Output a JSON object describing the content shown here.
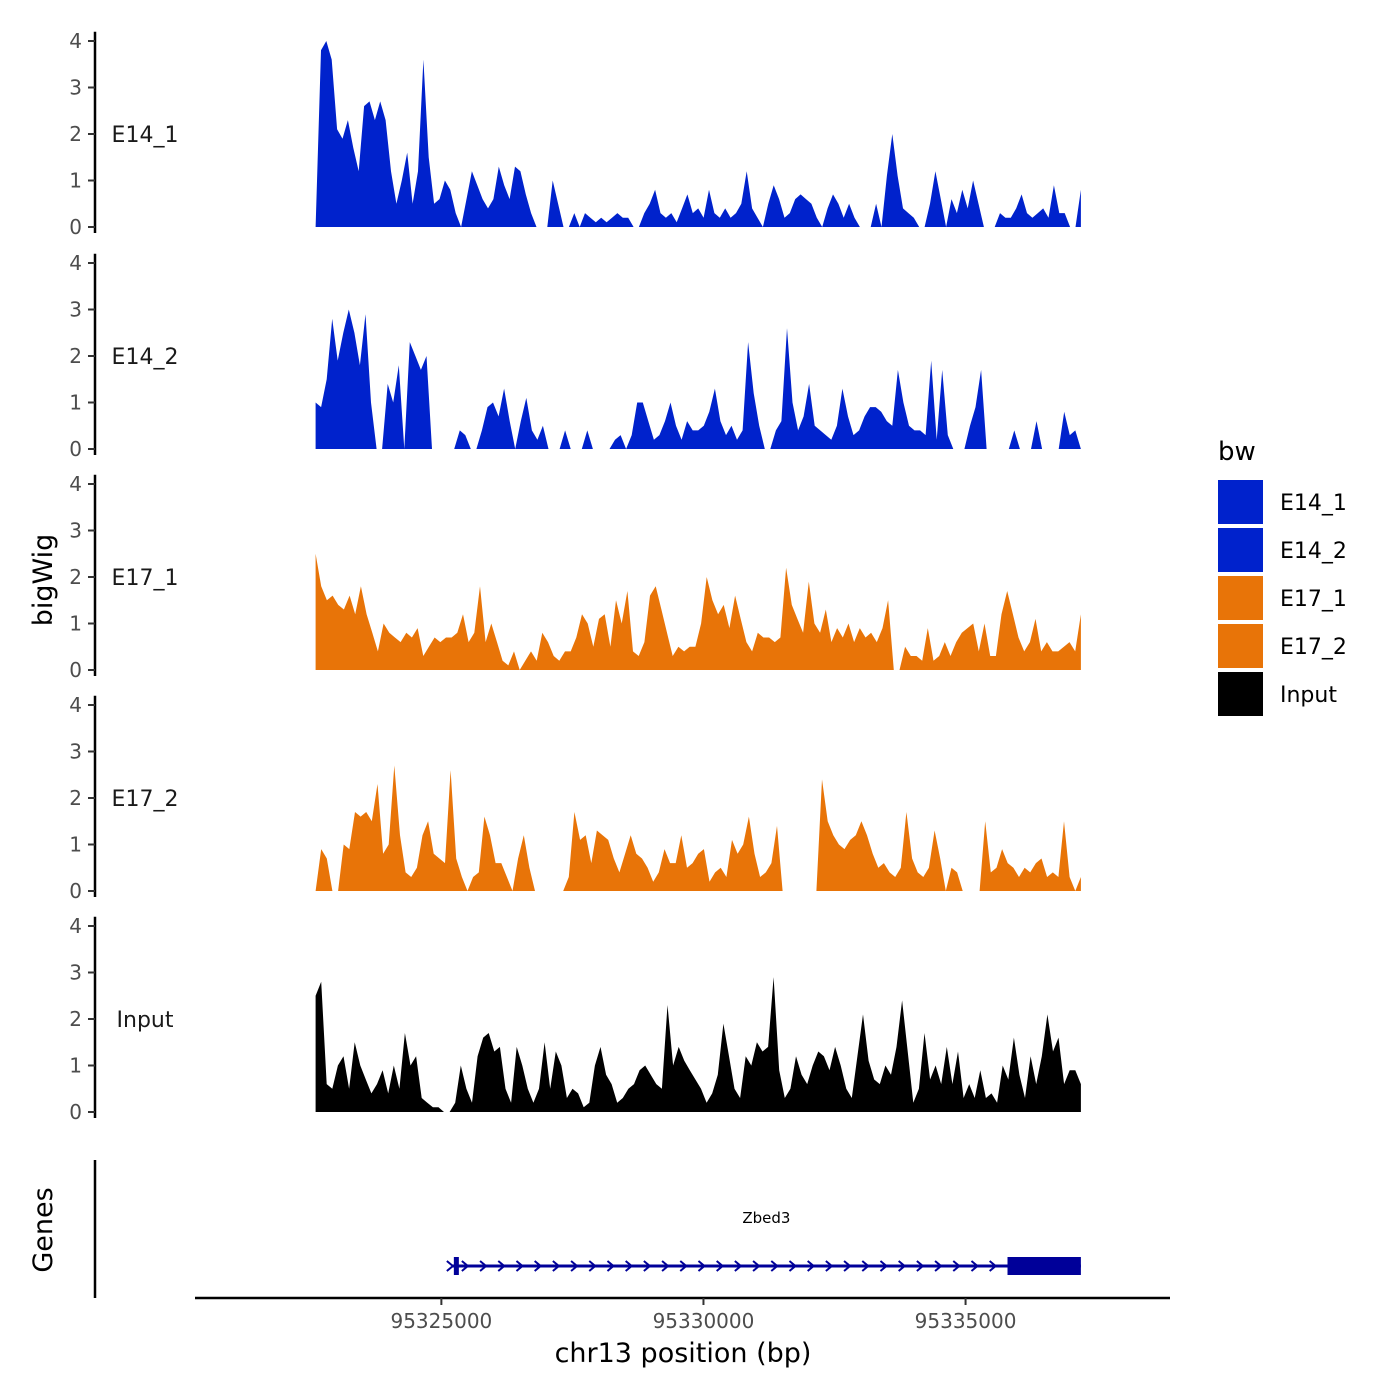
{
  "chart_data": {
    "type": "area",
    "ylabel": "bigWig",
    "xlabel": "chr13 position (bp)",
    "xlim": [
      95320300,
      95338900
    ],
    "ylim": [
      0,
      4.2
    ],
    "yticks": [
      0,
      1,
      2,
      3,
      4
    ],
    "xticks": [
      95325000,
      95330000,
      95335000
    ],
    "x_tick_labels": [
      "95325000",
      "95330000",
      "95335000"
    ],
    "y_tick_labels": [
      "0",
      "1",
      "2",
      "3",
      "4"
    ],
    "legend": {
      "title": "bw",
      "position": "right",
      "entries": [
        {
          "label": "E14_1",
          "color": "#0022cc"
        },
        {
          "label": "E14_2",
          "color": "#0022cc"
        },
        {
          "label": "E17_1",
          "color": "#e87408"
        },
        {
          "label": "E17_2",
          "color": "#e87408"
        },
        {
          "label": "Input",
          "color": "#000000"
        }
      ]
    },
    "track_x": [
      95322600,
      95337200
    ],
    "tracks": [
      {
        "name": "E14_1",
        "color": "#0022cc",
        "values": [
          0.0,
          3.8,
          4.0,
          3.6,
          2.1,
          1.9,
          2.3,
          1.7,
          1.2,
          2.6,
          2.7,
          2.3,
          2.7,
          2.3,
          1.2,
          0.5,
          1.0,
          1.6,
          0.5,
          1.2,
          3.6,
          1.5,
          0.5,
          0.6,
          1.0,
          0.8,
          0.3,
          0.0,
          0.6,
          1.2,
          0.9,
          0.6,
          0.4,
          0.6,
          1.3,
          0.9,
          0.6,
          1.3,
          1.2,
          0.7,
          0.3,
          0.0,
          0.0,
          0.0,
          1.0,
          0.5,
          0.0,
          0.0,
          0.3,
          0.0,
          0.3,
          0.2,
          0.1,
          0.2,
          0.1,
          0.2,
          0.3,
          0.2,
          0.2,
          0.0,
          0.0,
          0.3,
          0.5,
          0.8,
          0.3,
          0.2,
          0.3,
          0.1,
          0.4,
          0.7,
          0.3,
          0.4,
          0.2,
          0.8,
          0.3,
          0.2,
          0.4,
          0.2,
          0.3,
          0.5,
          1.2,
          0.4,
          0.2,
          0.0,
          0.5,
          0.9,
          0.6,
          0.2,
          0.3,
          0.6,
          0.7,
          0.6,
          0.5,
          0.2,
          0.0,
          0.4,
          0.7,
          0.5,
          0.2,
          0.5,
          0.2,
          0.0,
          0.0,
          0.0,
          0.5,
          0.0,
          1.1,
          2.0,
          1.1,
          0.4,
          0.3,
          0.2,
          0.0,
          0.0,
          0.5,
          1.2,
          0.6,
          0.0,
          0.6,
          0.3,
          0.8,
          0.4,
          1.0,
          0.5,
          0.0,
          0.0,
          0.0,
          0.3,
          0.2,
          0.2,
          0.4,
          0.7,
          0.3,
          0.2,
          0.3,
          0.4,
          0.2,
          0.9,
          0.3,
          0.3,
          0.0,
          0.0,
          0.8
        ]
      },
      {
        "name": "E14_2",
        "color": "#0022cc",
        "values": [
          1.0,
          0.9,
          1.5,
          2.8,
          1.9,
          2.5,
          3.0,
          2.5,
          1.8,
          2.9,
          1.0,
          0.0,
          0.0,
          1.4,
          1.0,
          1.8,
          0.0,
          2.3,
          2.0,
          1.7,
          2.0,
          0.0,
          0.0,
          0.0,
          0.0,
          0.0,
          0.4,
          0.3,
          0.0,
          0.0,
          0.4,
          0.9,
          1.0,
          0.7,
          1.3,
          0.6,
          0.0,
          0.6,
          1.1,
          0.4,
          0.2,
          0.5,
          0.0,
          0.0,
          0.0,
          0.4,
          0.0,
          0.0,
          0.0,
          0.4,
          0.0,
          0.0,
          0.0,
          0.0,
          0.2,
          0.3,
          0.0,
          0.3,
          1.0,
          1.0,
          0.6,
          0.2,
          0.3,
          0.6,
          1.0,
          0.5,
          0.2,
          0.6,
          0.4,
          0.4,
          0.5,
          0.8,
          1.3,
          0.6,
          0.3,
          0.5,
          0.2,
          0.4,
          2.3,
          1.2,
          0.5,
          0.0,
          0.0,
          0.4,
          0.6,
          2.6,
          1.0,
          0.4,
          0.7,
          1.4,
          0.5,
          0.4,
          0.3,
          0.2,
          0.5,
          1.3,
          0.7,
          0.3,
          0.4,
          0.7,
          0.9,
          0.9,
          0.8,
          0.6,
          0.5,
          1.7,
          1.0,
          0.5,
          0.4,
          0.4,
          0.3,
          1.9,
          0.2,
          1.7,
          0.3,
          0.0,
          0.0,
          0.0,
          0.5,
          0.9,
          1.7,
          0.0,
          0.0,
          0.0,
          0.0,
          0.0,
          0.4,
          0.0,
          0.0,
          0.0,
          0.6,
          0.0,
          0.0,
          0.0,
          0.0,
          0.8,
          0.3,
          0.4,
          0.0
        ]
      },
      {
        "name": "E17_1",
        "color": "#e87408",
        "values": [
          2.5,
          1.8,
          1.5,
          1.6,
          1.4,
          1.3,
          1.6,
          1.2,
          1.8,
          1.2,
          0.8,
          0.4,
          1.0,
          0.8,
          0.7,
          0.6,
          0.8,
          0.7,
          0.9,
          0.3,
          0.5,
          0.7,
          0.6,
          0.7,
          0.7,
          0.8,
          1.2,
          0.6,
          0.8,
          1.8,
          0.6,
          1.0,
          0.6,
          0.2,
          0.1,
          0.4,
          0.0,
          0.2,
          0.4,
          0.2,
          0.8,
          0.6,
          0.3,
          0.2,
          0.4,
          0.4,
          0.7,
          1.2,
          1.0,
          0.5,
          1.1,
          1.2,
          0.5,
          1.5,
          1.0,
          1.7,
          0.4,
          0.3,
          0.6,
          1.6,
          1.8,
          1.3,
          0.8,
          0.3,
          0.5,
          0.4,
          0.5,
          0.5,
          1.0,
          2.0,
          1.5,
          1.2,
          1.4,
          0.9,
          1.6,
          1.1,
          0.6,
          0.4,
          0.8,
          0.7,
          0.7,
          0.6,
          0.7,
          2.2,
          1.4,
          1.1,
          0.8,
          1.9,
          1.0,
          0.8,
          1.3,
          0.6,
          0.9,
          0.7,
          1.0,
          0.6,
          0.9,
          0.7,
          0.8,
          0.6,
          0.9,
          1.5,
          0.0,
          0.0,
          0.5,
          0.3,
          0.3,
          0.2,
          0.9,
          0.2,
          0.3,
          0.6,
          0.3,
          0.6,
          0.8,
          0.9,
          1.0,
          0.4,
          1.0,
          0.3,
          0.3,
          1.2,
          1.7,
          1.2,
          0.7,
          0.4,
          0.6,
          1.1,
          0.4,
          0.6,
          0.4,
          0.4,
          0.5,
          0.6,
          0.4,
          1.2
        ]
      },
      {
        "name": "E17_2",
        "color": "#e87408",
        "values": [
          0.0,
          0.9,
          0.7,
          0.0,
          0.0,
          1.0,
          0.9,
          1.7,
          1.6,
          1.7,
          1.5,
          2.3,
          0.8,
          1.0,
          2.7,
          1.2,
          0.4,
          0.3,
          0.5,
          1.2,
          1.5,
          0.8,
          0.7,
          0.6,
          2.6,
          0.7,
          0.3,
          0.0,
          0.3,
          0.4,
          1.6,
          1.2,
          0.6,
          0.6,
          0.3,
          0.0,
          0.7,
          1.2,
          0.5,
          0.0,
          0.0,
          0.0,
          0.0,
          0.0,
          0.0,
          0.3,
          1.7,
          1.1,
          1.2,
          0.6,
          1.3,
          1.2,
          1.1,
          0.7,
          0.4,
          0.8,
          1.2,
          0.8,
          0.7,
          0.5,
          0.2,
          0.4,
          0.9,
          0.6,
          0.6,
          1.2,
          0.5,
          0.6,
          0.8,
          0.9,
          0.2,
          0.4,
          0.5,
          0.3,
          1.1,
          0.8,
          1.0,
          1.6,
          0.8,
          0.3,
          0.4,
          0.6,
          1.4,
          0.0,
          0.0,
          0.0,
          0.0,
          0.0,
          0.0,
          0.0,
          2.4,
          1.5,
          1.2,
          1.0,
          0.9,
          1.1,
          1.2,
          1.5,
          1.2,
          0.8,
          0.5,
          0.6,
          0.4,
          0.3,
          0.5,
          1.7,
          0.7,
          0.4,
          0.3,
          0.5,
          1.3,
          0.7,
          0.0,
          0.5,
          0.4,
          0.0,
          0.0,
          0.0,
          0.0,
          1.5,
          0.4,
          0.5,
          0.9,
          0.6,
          0.5,
          0.3,
          0.5,
          0.4,
          0.6,
          0.7,
          0.3,
          0.4,
          0.3,
          1.5,
          0.3,
          0.0,
          0.3
        ]
      },
      {
        "name": "Input",
        "color": "#000000",
        "values": [
          2.5,
          2.8,
          0.6,
          0.5,
          1.0,
          1.2,
          0.5,
          1.5,
          1.0,
          0.7,
          0.4,
          0.6,
          0.9,
          0.4,
          1.0,
          0.5,
          1.7,
          1.0,
          1.2,
          0.3,
          0.2,
          0.1,
          0.1,
          0.0,
          0.0,
          0.2,
          1.0,
          0.5,
          0.2,
          1.2,
          1.6,
          1.7,
          1.3,
          1.4,
          0.5,
          0.2,
          1.4,
          1.0,
          0.5,
          0.2,
          0.5,
          1.5,
          0.5,
          1.3,
          1.0,
          0.3,
          0.5,
          0.4,
          0.1,
          0.2,
          1.0,
          1.4,
          0.8,
          0.6,
          0.2,
          0.3,
          0.5,
          0.6,
          0.9,
          1.0,
          0.8,
          0.6,
          0.5,
          2.3,
          1.0,
          1.4,
          1.1,
          0.9,
          0.7,
          0.5,
          0.2,
          0.4,
          0.8,
          1.9,
          1.2,
          0.5,
          0.3,
          1.2,
          1.0,
          1.5,
          1.3,
          1.4,
          2.9,
          0.9,
          0.3,
          0.5,
          1.2,
          0.8,
          0.6,
          1.0,
          1.3,
          1.2,
          0.9,
          1.4,
          1.0,
          0.5,
          0.3,
          1.2,
          2.1,
          1.1,
          0.7,
          0.6,
          1.0,
          0.8,
          1.4,
          2.4,
          1.3,
          0.2,
          0.5,
          1.7,
          0.7,
          1.0,
          0.6,
          1.4,
          0.6,
          1.3,
          0.3,
          0.6,
          0.3,
          0.9,
          0.3,
          0.4,
          0.2,
          1.0,
          0.7,
          1.6,
          0.8,
          0.3,
          1.2,
          0.6,
          1.2,
          2.1,
          1.3,
          1.6,
          0.6,
          0.9,
          0.9,
          0.6
        ]
      }
    ],
    "gene": {
      "name": "Zbed3",
      "track_label": "Genes",
      "start": 95325200,
      "end": 95337200,
      "thick_start": 95335800,
      "color": "#000099"
    }
  }
}
